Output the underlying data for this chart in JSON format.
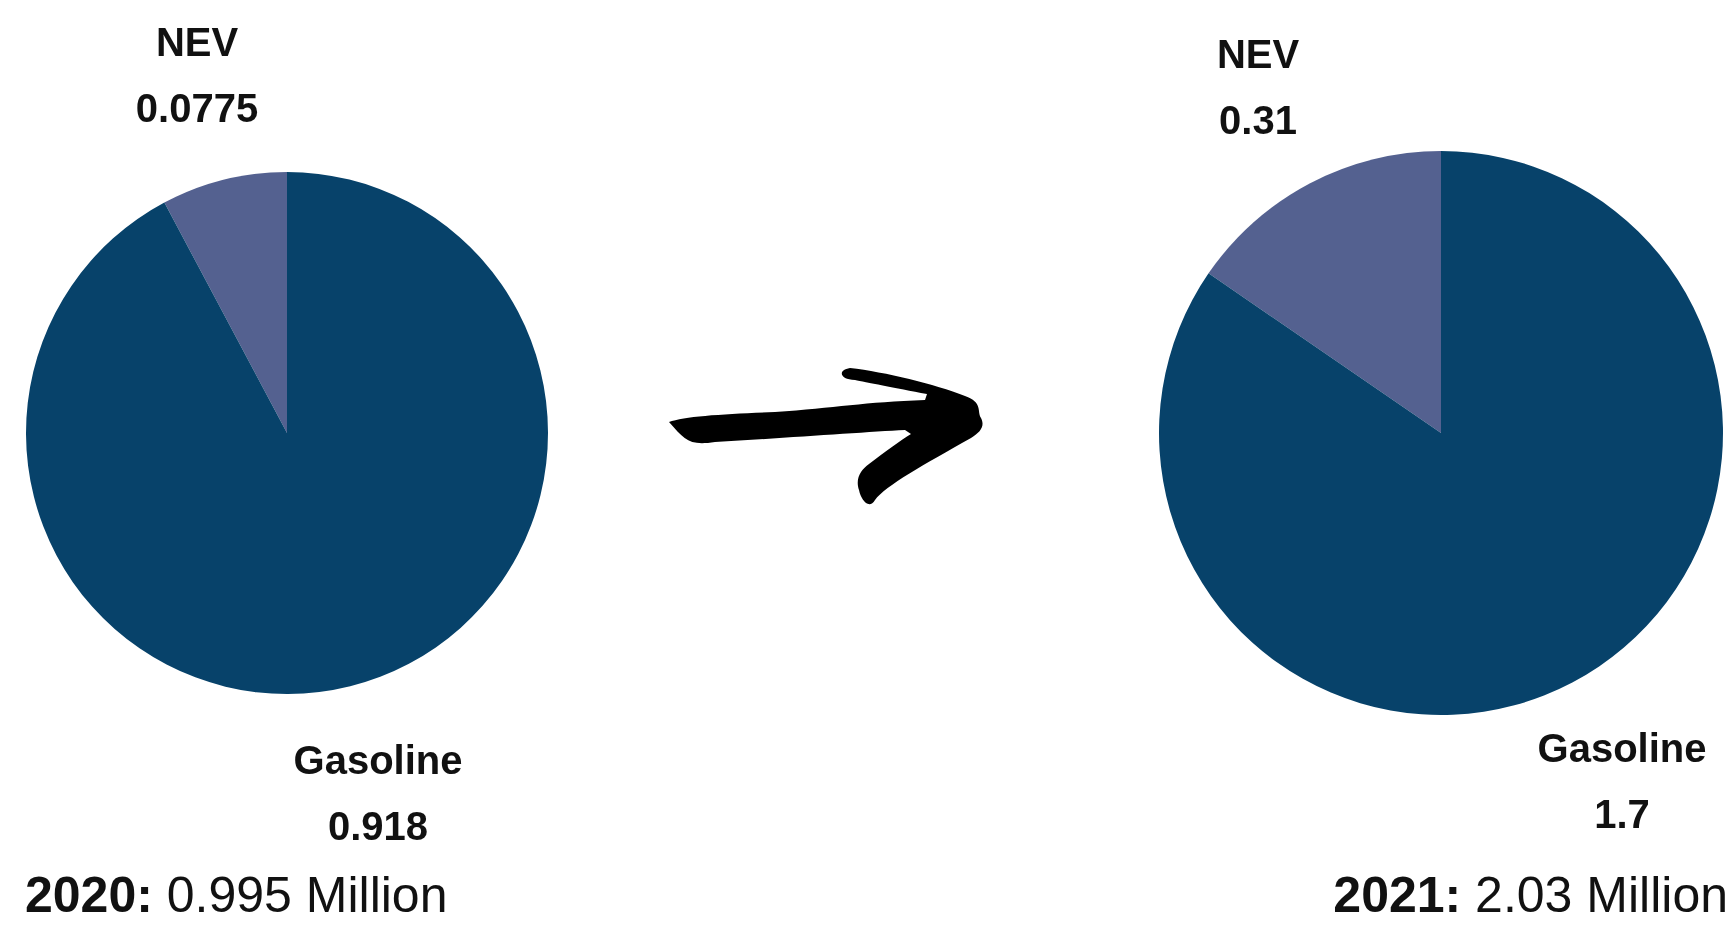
{
  "chart_data": [
    {
      "type": "pie",
      "title": "2020: 0.995 Million",
      "categories": [
        "NEV",
        "Gasoline"
      ],
      "values": [
        0.0775,
        0.918
      ],
      "colors": [
        "#546190",
        "#07426a"
      ],
      "data_labels": true
    },
    {
      "type": "pie",
      "title": "2021: 2.03 Million",
      "categories": [
        "NEV",
        "Gasoline"
      ],
      "values": [
        0.31,
        1.7
      ],
      "colors": [
        "#546190",
        "#07426a"
      ],
      "data_labels": true
    }
  ]
}
